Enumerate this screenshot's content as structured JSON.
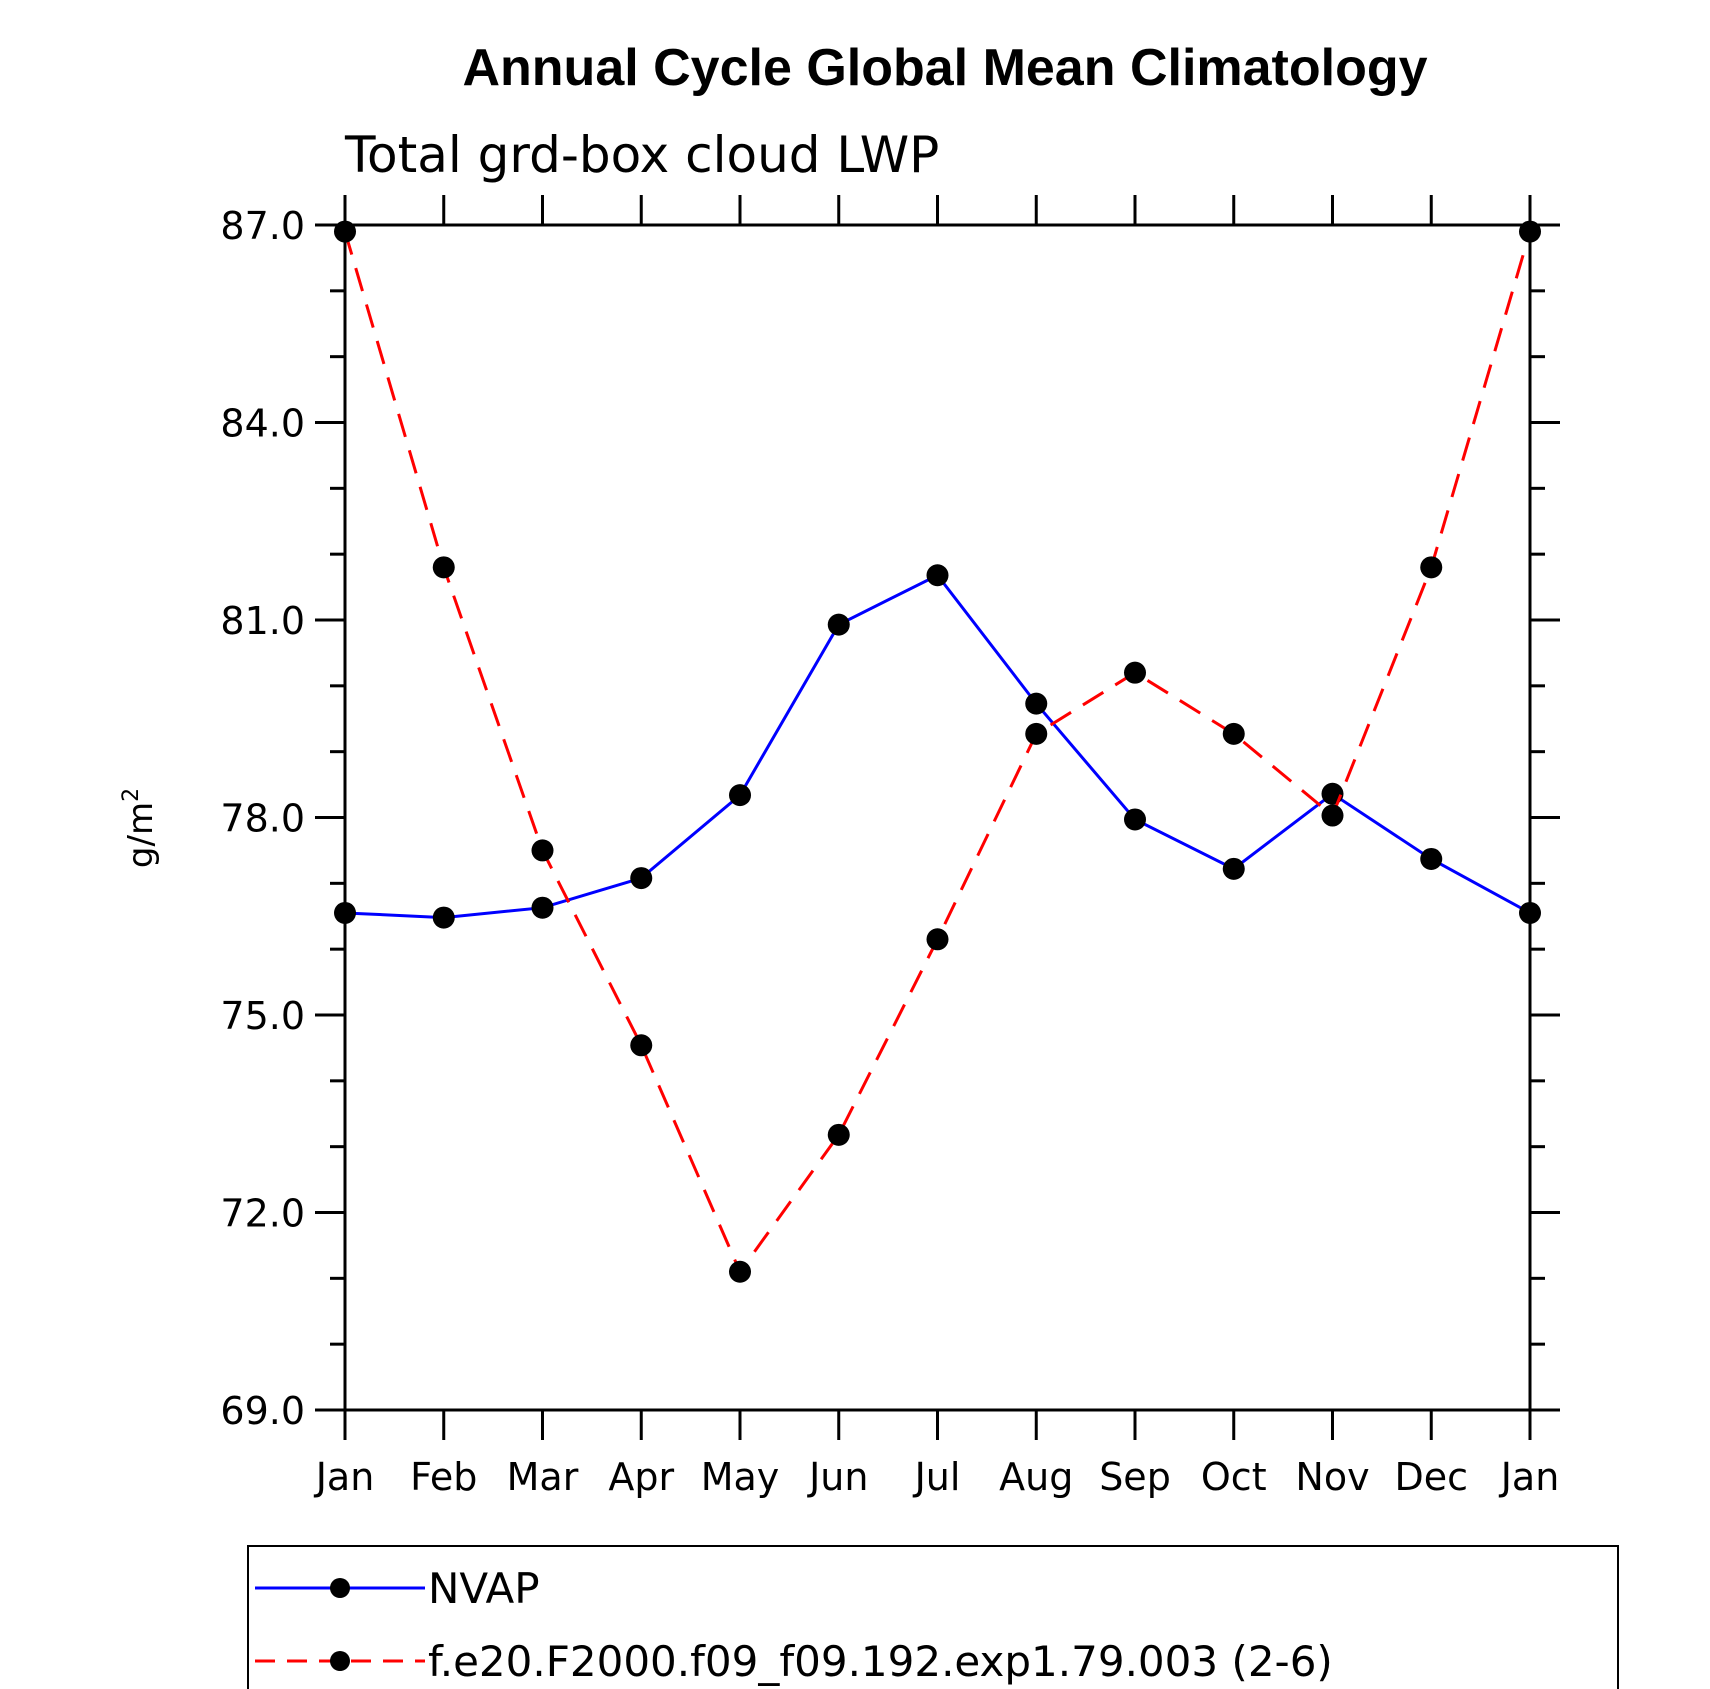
{
  "chart_data": {
    "type": "line",
    "title": "Annual Cycle Global Mean Climatology",
    "subtitle": "Total grd-box cloud LWP",
    "xlabel": "",
    "ylabel": "g/m",
    "ylabel_sup": "2",
    "categories": [
      "Jan",
      "Feb",
      "Mar",
      "Apr",
      "May",
      "Jun",
      "Jul",
      "Aug",
      "Sep",
      "Oct",
      "Nov",
      "Dec",
      "Jan"
    ],
    "ylim": [
      69.0,
      87.0
    ],
    "yticks": [
      "87.0",
      "84.0",
      "81.0",
      "78.0",
      "75.0",
      "72.0",
      "69.0"
    ],
    "grid": false,
    "legend_position": "bottom",
    "series": [
      {
        "name": "NVAP",
        "color": "#0000ff",
        "dash": "solid",
        "values": [
          76.55,
          76.48,
          76.63,
          77.08,
          78.34,
          80.93,
          81.68,
          79.73,
          77.97,
          77.22,
          78.36,
          77.37,
          76.55
        ]
      },
      {
        "name": "f.e20.F2000.f09_f09.192.exp1.79.003 (2-6)",
        "color": "#ff0000",
        "dash": "dashed",
        "values": [
          86.9,
          81.8,
          77.5,
          74.54,
          71.1,
          73.18,
          76.15,
          79.27,
          80.2,
          79.27,
          78.03,
          81.8,
          86.9
        ]
      }
    ]
  }
}
